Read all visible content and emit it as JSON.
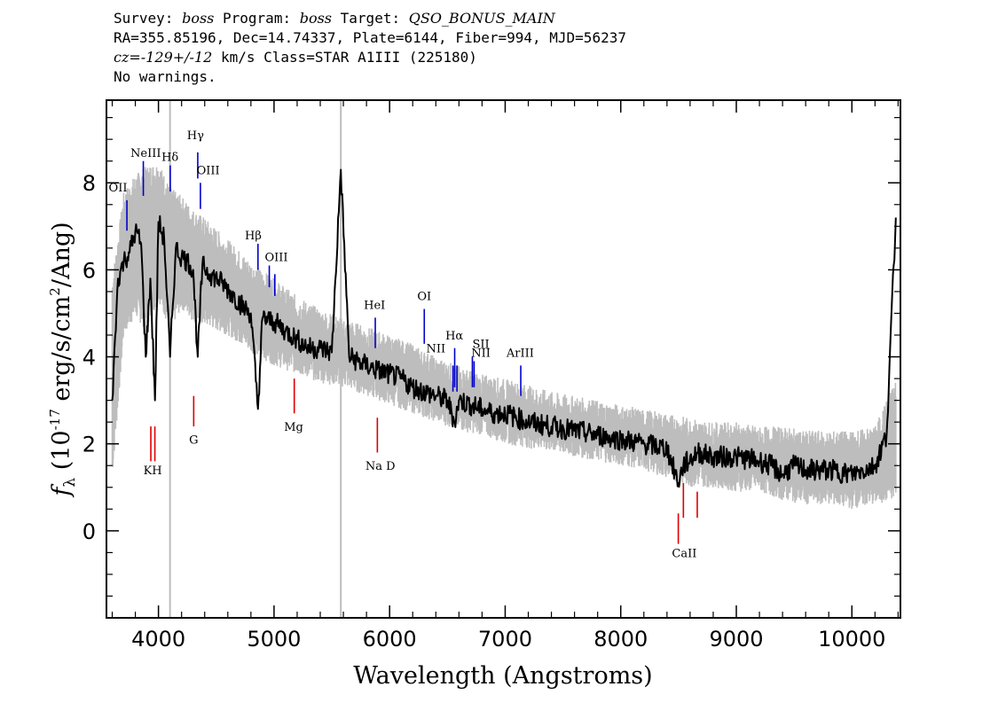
{
  "header": {
    "line1": {
      "survey_label": "Survey:",
      "survey": "boss",
      "program_label": "Program:",
      "program": "boss",
      "target_label": "Target:",
      "target": "QSO_BONUS_MAIN"
    },
    "line2": "RA=355.85196, Dec=14.74337, Plate=6144, Fiber=994, MJD=56237",
    "line3": {
      "cz": "cz=-129+/-12",
      "rest": " km/s Class=STAR A1III (225180)"
    },
    "line4": "No warnings."
  },
  "chart_data": {
    "type": "line",
    "xlabel": "Wavelength (Angstroms)",
    "ylabel": "f_λ (10^-17 erg/s/cm^2/Ang)",
    "xlim": [
      3550,
      10420
    ],
    "ylim": [
      -2.0,
      9.9
    ],
    "x_ticks": [
      4000,
      5000,
      6000,
      7000,
      8000,
      9000,
      10000
    ],
    "y_ticks": [
      0,
      2,
      4,
      6,
      8
    ],
    "x_tick_labels": [
      "4000",
      "5000",
      "6000",
      "7000",
      "8000",
      "9000",
      "10000"
    ],
    "y_tick_labels": [
      "0",
      "2",
      "4",
      "6",
      "8"
    ],
    "vertical_gridlines": [
      4100,
      5578
    ],
    "series": [
      {
        "role": "flux",
        "color": "#000000",
        "x": [
          3600,
          3650,
          3700,
          3750,
          3800,
          3850,
          3890,
          3930,
          3970,
          4000,
          4050,
          4100,
          4150,
          4200,
          4250,
          4300,
          4340,
          4380,
          4450,
          4550,
          4650,
          4750,
          4800,
          4861,
          4900,
          5000,
          5100,
          5200,
          5300,
          5400,
          5500,
          5578,
          5650,
          5800,
          5890,
          6000,
          6100,
          6200,
          6300,
          6400,
          6500,
          6563,
          6600,
          6700,
          6800,
          6900,
          7000,
          7200,
          7400,
          7600,
          7800,
          8000,
          8200,
          8400,
          8498,
          8542,
          8662,
          8800,
          9000,
          9200,
          9300,
          9400,
          9500,
          9600,
          9800,
          10000,
          10200,
          10300,
          10380
        ],
        "y": [
          3.0,
          5.8,
          6.2,
          6.4,
          6.9,
          6.6,
          4.0,
          5.8,
          3.0,
          7.1,
          6.7,
          4.0,
          6.5,
          6.3,
          6.2,
          6.0,
          4.0,
          6.1,
          5.9,
          5.7,
          5.4,
          5.1,
          5.0,
          2.8,
          4.9,
          4.8,
          4.6,
          4.4,
          4.2,
          4.2,
          4.1,
          8.3,
          4.0,
          3.8,
          3.7,
          3.6,
          3.5,
          3.3,
          3.2,
          3.1,
          3.0,
          2.5,
          3.0,
          2.9,
          2.8,
          2.7,
          2.7,
          2.5,
          2.4,
          2.3,
          2.2,
          2.1,
          2.0,
          1.9,
          1.1,
          1.5,
          1.8,
          1.7,
          1.7,
          1.6,
          1.5,
          1.3,
          1.5,
          1.4,
          1.4,
          1.3,
          1.5,
          2.2,
          7.2
        ]
      },
      {
        "role": "error",
        "color": "#bdbdbd",
        "x": [
          3600,
          3700,
          3800,
          3900,
          4000,
          4100,
          4200,
          4300,
          4400,
          4600,
          4800,
          5000,
          5200,
          5400,
          5600,
          5800,
          6000,
          6200,
          6400,
          6600,
          6800,
          7000,
          7400,
          7800,
          8000,
          8200,
          8400,
          8600,
          8800,
          9000,
          9200,
          9400,
          9600,
          9800,
          10000,
          10200,
          10380
        ],
        "y_low": [
          1.5,
          4.8,
          5.2,
          4.9,
          5.6,
          4.9,
          5.4,
          5.1,
          5.0,
          4.8,
          4.4,
          4.1,
          3.9,
          3.7,
          3.6,
          3.4,
          3.2,
          3.0,
          2.8,
          2.6,
          2.5,
          2.3,
          2.1,
          1.9,
          1.8,
          1.7,
          1.5,
          1.3,
          1.3,
          1.2,
          1.2,
          1.0,
          0.9,
          0.9,
          0.8,
          0.9,
          1.0
        ],
        "y_high": [
          5.5,
          7.5,
          7.9,
          8.1,
          8.2,
          7.6,
          7.4,
          7.1,
          6.9,
          6.4,
          5.9,
          5.5,
          5.1,
          4.8,
          4.6,
          4.4,
          4.2,
          4.0,
          3.7,
          3.5,
          3.3,
          3.2,
          2.9,
          2.7,
          2.6,
          2.5,
          2.4,
          2.3,
          2.2,
          2.2,
          2.1,
          2.1,
          2.0,
          2.0,
          2.0,
          2.1,
          3.2
        ]
      }
    ],
    "emission_lines": [
      {
        "label": "OII",
        "x": 3727,
        "y0": 6.9,
        "y1": 7.6
      },
      {
        "label": "NeIII",
        "x": 3869,
        "y0": 7.7,
        "y1": 8.5
      },
      {
        "label": "Hδ",
        "x": 4102,
        "y0": 7.8,
        "y1": 8.4
      },
      {
        "label": "Hγ",
        "x": 4340,
        "y0": 8.1,
        "y1": 8.7
      },
      {
        "label": "OIII",
        "x": 4363,
        "y0": 7.4,
        "y1": 8.0
      },
      {
        "label": "Hβ",
        "x": 4861,
        "y0": 6.0,
        "y1": 6.6
      },
      {
        "label": "OIII",
        "x": 4959,
        "y0": 5.6,
        "y1": 6.1
      },
      {
        "label": "OIII",
        "x": 5007,
        "y0": 5.4,
        "y1": 5.9
      },
      {
        "label": "HeI",
        "x": 5876,
        "y0": 4.2,
        "y1": 4.9
      },
      {
        "label": "OI",
        "x": 6300,
        "y0": 4.3,
        "y1": 5.1
      },
      {
        "label": "NII",
        "x": 6548,
        "y0": 3.2,
        "y1": 3.8
      },
      {
        "label": "Hα",
        "x": 6563,
        "y0": 3.3,
        "y1": 4.2
      },
      {
        "label": "NII",
        "x": 6583,
        "y0": 3.2,
        "y1": 3.8
      },
      {
        "label": "SII",
        "x": 6716,
        "y0": 3.3,
        "y1": 4.0
      },
      {
        "label": "SII",
        "x": 6731,
        "y0": 3.3,
        "y1": 3.9
      },
      {
        "label": "ArIII",
        "x": 7135,
        "y0": 3.1,
        "y1": 3.8
      }
    ],
    "absorption_lines": [
      {
        "label": "K",
        "x": 3934,
        "y0": 1.6,
        "y1": 2.4
      },
      {
        "label": "H",
        "x": 3969,
        "y0": 1.6,
        "y1": 2.4
      },
      {
        "label": "G",
        "x": 4305,
        "y0": 2.4,
        "y1": 3.1
      },
      {
        "label": "Mg",
        "x": 5175,
        "y0": 2.7,
        "y1": 3.5
      },
      {
        "label": "Na D",
        "x": 5894,
        "y0": 1.8,
        "y1": 2.6
      },
      {
        "label": "CaII",
        "x": 8498,
        "y0": -0.3,
        "y1": 0.4
      },
      {
        "label": "CaII",
        "x": 8542,
        "y0": 0.3,
        "y1": 1.1
      },
      {
        "label": "CaII",
        "x": 8662,
        "y0": 0.3,
        "y1": 0.9
      }
    ],
    "line_label_text": [
      {
        "text": "OII",
        "x": 3650,
        "y": 7.8
      },
      {
        "text": "NeIII",
        "x": 3890,
        "y": 8.6
      },
      {
        "text": "Hδ",
        "x": 4100,
        "y": 8.5
      },
      {
        "text": "Hγ",
        "x": 4320,
        "y": 9.0
      },
      {
        "text": "OIII",
        "x": 4430,
        "y": 8.2
      },
      {
        "text": "Hβ",
        "x": 4820,
        "y": 6.7
      },
      {
        "text": "OIII",
        "x": 5020,
        "y": 6.2
      },
      {
        "text": "HeI",
        "x": 5870,
        "y": 5.1
      },
      {
        "text": "OI",
        "x": 6300,
        "y": 5.3
      },
      {
        "text": "NII",
        "x": 6400,
        "y": 4.1
      },
      {
        "text": "Hα",
        "x": 6560,
        "y": 4.4
      },
      {
        "text": "SII",
        "x": 6790,
        "y": 4.2
      },
      {
        "text": "NII",
        "x": 6790,
        "y": 4.0
      },
      {
        "text": "ArIII",
        "x": 7130,
        "y": 4.0
      },
      {
        "text": "KH",
        "x": 3950,
        "y": 1.3
      },
      {
        "text": "G",
        "x": 4305,
        "y": 2.0
      },
      {
        "text": "Mg",
        "x": 5170,
        "y": 2.3
      },
      {
        "text": "Na D",
        "x": 5920,
        "y": 1.4
      },
      {
        "text": "CaII",
        "x": 8550,
        "y": -0.6
      }
    ]
  },
  "colors": {
    "flux": "#000000",
    "error": "#bdbdbd",
    "emission": "#0000cc",
    "absorption": "#dd0000",
    "grid": "#bdbdbd"
  }
}
